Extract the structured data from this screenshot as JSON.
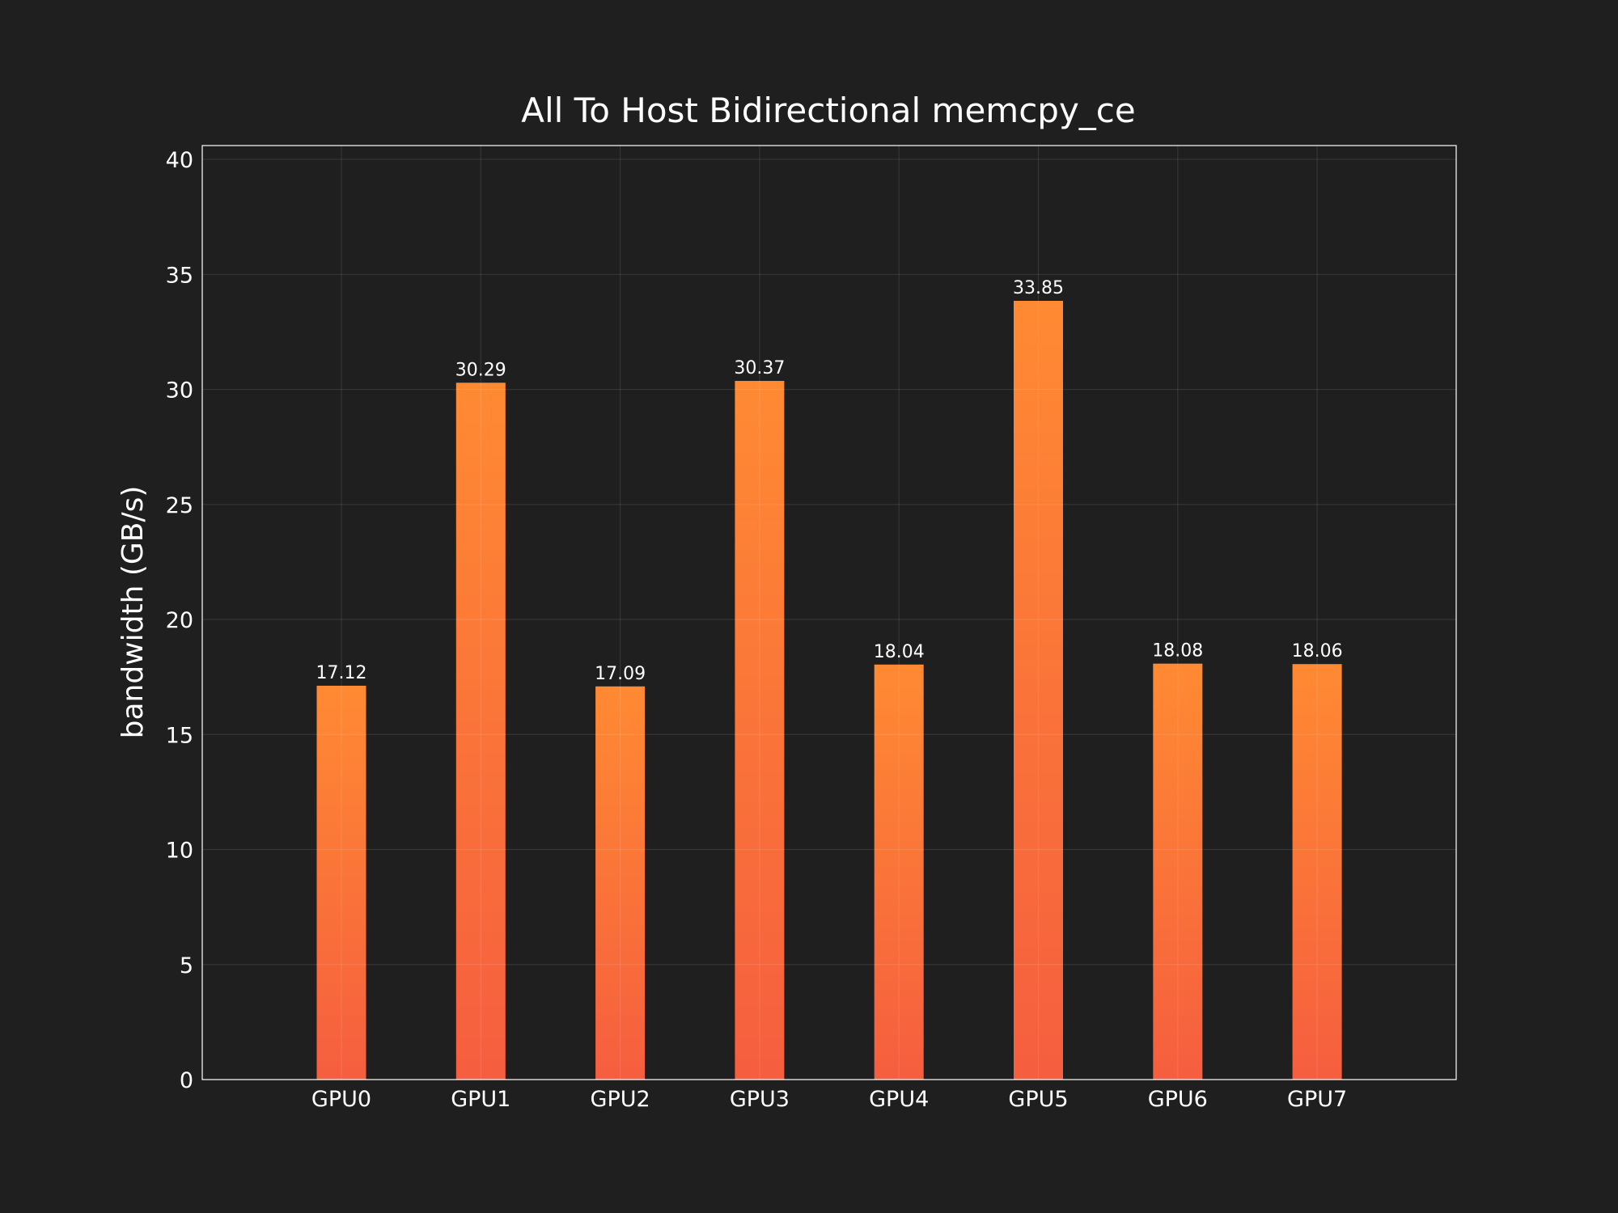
{
  "chart_data": {
    "type": "bar",
    "title": "All To Host Bidirectional memcpy_ce",
    "xlabel": "",
    "ylabel": "bandwidth (GB/s)",
    "categories": [
      "GPU0",
      "GPU1",
      "GPU2",
      "GPU3",
      "GPU4",
      "GPU5",
      "GPU6",
      "GPU7"
    ],
    "values": [
      17.12,
      30.29,
      17.09,
      30.37,
      18.04,
      33.85,
      18.08,
      18.06
    ],
    "data_labels": [
      "17.12",
      "30.29",
      "17.09",
      "30.37",
      "18.04",
      "33.85",
      "18.08",
      "18.06"
    ],
    "ylim": [
      0,
      40.6
    ],
    "yticks": [
      0,
      5,
      10,
      15,
      20,
      25,
      30,
      35,
      40
    ],
    "grid": true,
    "legend": "none",
    "colors": {
      "background": "#1f1f1f",
      "bar_top": "#ff8a33",
      "bar_bottom": "#f55e3f",
      "text": "#ffffff"
    }
  }
}
